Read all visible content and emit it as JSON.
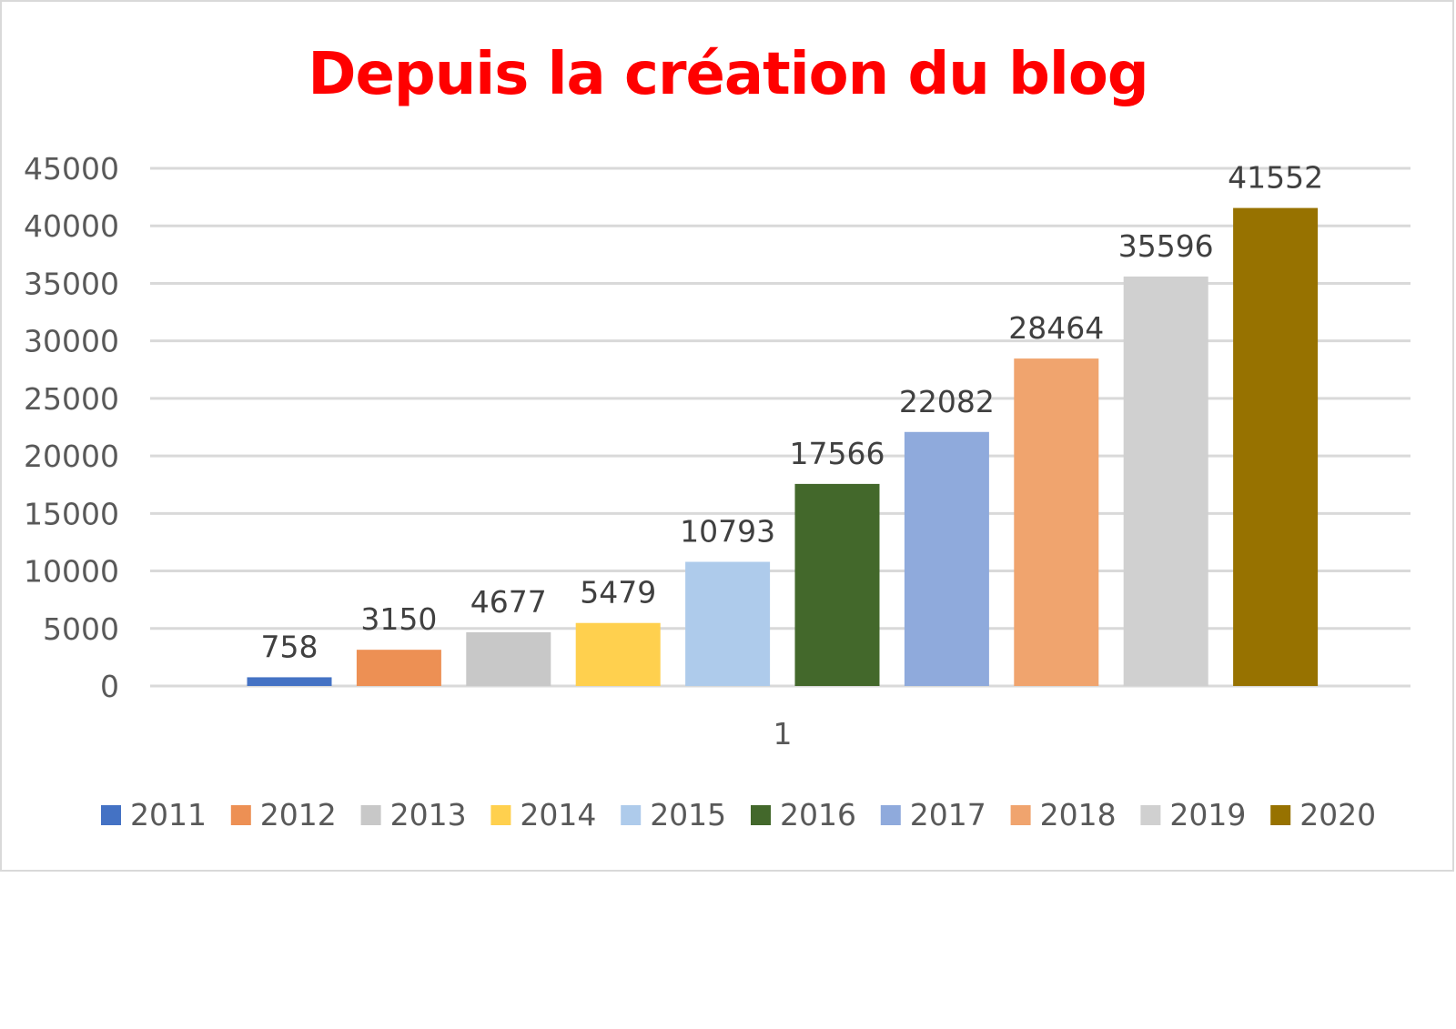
{
  "chart_data": {
    "type": "bar",
    "title": "Depuis la création du blog",
    "title_color": "#ff0000",
    "xlabel": "",
    "ylabel": "",
    "categories": [
      "1"
    ],
    "ylim": [
      0,
      45000
    ],
    "yticks": [
      0,
      5000,
      10000,
      15000,
      20000,
      25000,
      30000,
      35000,
      40000,
      45000
    ],
    "grid": true,
    "legend_position": "bottom",
    "data_labels": true,
    "series": [
      {
        "name": "2011",
        "values": [
          758
        ],
        "color": "#4472c4"
      },
      {
        "name": "2012",
        "values": [
          3150
        ],
        "color": "#ed9054"
      },
      {
        "name": "2013",
        "values": [
          4677
        ],
        "color": "#c8c8c8"
      },
      {
        "name": "2014",
        "values": [
          5479
        ],
        "color": "#ffd04e"
      },
      {
        "name": "2015",
        "values": [
          10793
        ],
        "color": "#aecbeb"
      },
      {
        "name": "2016",
        "values": [
          17566
        ],
        "color": "#43682b"
      },
      {
        "name": "2017",
        "values": [
          22082
        ],
        "color": "#8faadc"
      },
      {
        "name": "2018",
        "values": [
          28464
        ],
        "color": "#f0a46e"
      },
      {
        "name": "2019",
        "values": [
          35596
        ],
        "color": "#d0d0d0"
      },
      {
        "name": "2020",
        "values": [
          41552
        ],
        "color": "#977200"
      }
    ]
  }
}
